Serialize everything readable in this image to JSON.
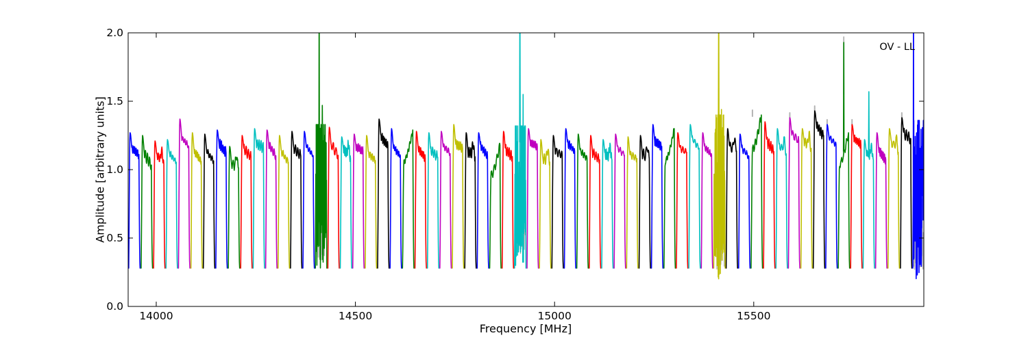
{
  "figure": {
    "annotation": "OV - LL"
  },
  "chart_data": {
    "type": "line",
    "title": "",
    "xlabel": "Frequency [MHz]",
    "ylabel": "Amplitude [arbitrary units]",
    "xlim": [
      13929.5,
      15927.0
    ],
    "ylim": [
      0.0,
      2.0
    ],
    "grid": false,
    "x_ticks": [
      14000,
      14500,
      15000,
      15500
    ],
    "x_tick_labels": [
      "14000",
      "14500",
      "15000",
      "15500"
    ],
    "y_ticks": [
      0.0,
      0.5,
      1.0,
      1.5,
      2.0
    ],
    "y_tick_labels": [
      "0.0",
      "0.5",
      "1.0",
      "1.5",
      "2.0"
    ],
    "annotation": "OV - LL",
    "color_cycle": [
      "#0000ff",
      "#008000",
      "#ff0000",
      "#00bfbf",
      "#bf00bf",
      "#bfbf00",
      "#000000"
    ],
    "flagged_color": "#b3b3b3",
    "model": {
      "n_segments": 64,
      "f_start_mhz": 13929.5,
      "segment_width_mhz": 31.25,
      "edge_gap_mhz": 1.3,
      "edge_amplitude": 0.28,
      "description_peaks": "approximate plateau maximum of each subband bandpass, ordered by frequency",
      "peaks": [
        1.27,
        1.25,
        1.21,
        1.22,
        1.37,
        1.27,
        1.26,
        1.29,
        1.17,
        1.25,
        1.3,
        1.29,
        1.25,
        1.28,
        1.28,
        1.33,
        1.31,
        1.24,
        1.26,
        1.25,
        1.37,
        1.3,
        1.29,
        1.28,
        1.27,
        1.28,
        1.33,
        1.27,
        1.27,
        1.18,
        1.28,
        1.32,
        1.3,
        1.22,
        1.25,
        1.3,
        1.26,
        1.25,
        1.22,
        1.26,
        1.24,
        1.25,
        1.33,
        1.3,
        1.27,
        1.33,
        1.27,
        1.4,
        1.3,
        1.26,
        1.4,
        1.35,
        1.3,
        1.38,
        1.3,
        1.43,
        1.33,
        1.27,
        1.33,
        1.22,
        1.27,
        1.3,
        1.38,
        1.36
      ],
      "profiles": [
        0,
        0,
        1,
        0,
        0,
        0,
        0,
        0,
        1,
        0,
        0,
        0,
        0,
        0,
        0,
        3,
        0,
        1,
        0,
        0,
        0,
        0,
        2,
        0,
        0,
        0,
        0,
        1,
        0,
        2,
        0,
        3,
        0,
        1,
        0,
        0,
        0,
        0,
        1,
        0,
        0,
        1,
        0,
        2,
        0,
        0,
        0,
        3,
        1,
        0,
        2,
        0,
        1,
        0,
        1,
        0,
        0,
        2,
        0,
        1,
        0,
        1,
        0,
        3
      ],
      "profile_codes": {
        "0": "peak-then-plateau",
        "1": "double-hump",
        "2": "ramp-to-right",
        "3": "noisy-rfi"
      },
      "noisy": [
        {
          "segment": 15,
          "min_amp": 0.28
        },
        {
          "segment": 31,
          "min_amp": 0.3
        },
        {
          "segment": 47,
          "min_amp": 0.18
        },
        {
          "segment": 63,
          "min_amp": 0.2
        }
      ],
      "spikes": [
        {
          "segment": 15,
          "f": 14409,
          "amp": 2.35,
          "clipped": true
        },
        {
          "segment": 15,
          "f": 14417,
          "amp": 1.47,
          "clipped": false
        },
        {
          "segment": 31,
          "f": 14913,
          "amp": 2.35,
          "clipped": true
        },
        {
          "segment": 31,
          "f": 14921,
          "amp": 1.55,
          "clipped": false
        },
        {
          "segment": 47,
          "f": 15412,
          "amp": 2.35,
          "clipped": true
        },
        {
          "segment": 47,
          "f": 15419,
          "amp": 1.44,
          "clipped": false
        },
        {
          "segment": 57,
          "f": 15726,
          "amp": 1.93,
          "clipped": false
        },
        {
          "segment": 59,
          "f": 15789,
          "amp": 1.57,
          "clipped": false
        },
        {
          "segment": 63,
          "f": 15901,
          "amp": 2.35,
          "clipped": true
        }
      ],
      "flagged": {
        "peak_tip_segments": [
          50,
          53,
          55,
          56,
          58,
          62
        ],
        "spike_tips": [
          {
            "f": 15726,
            "a0": 1.55,
            "a1": 1.97
          }
        ]
      }
    }
  }
}
